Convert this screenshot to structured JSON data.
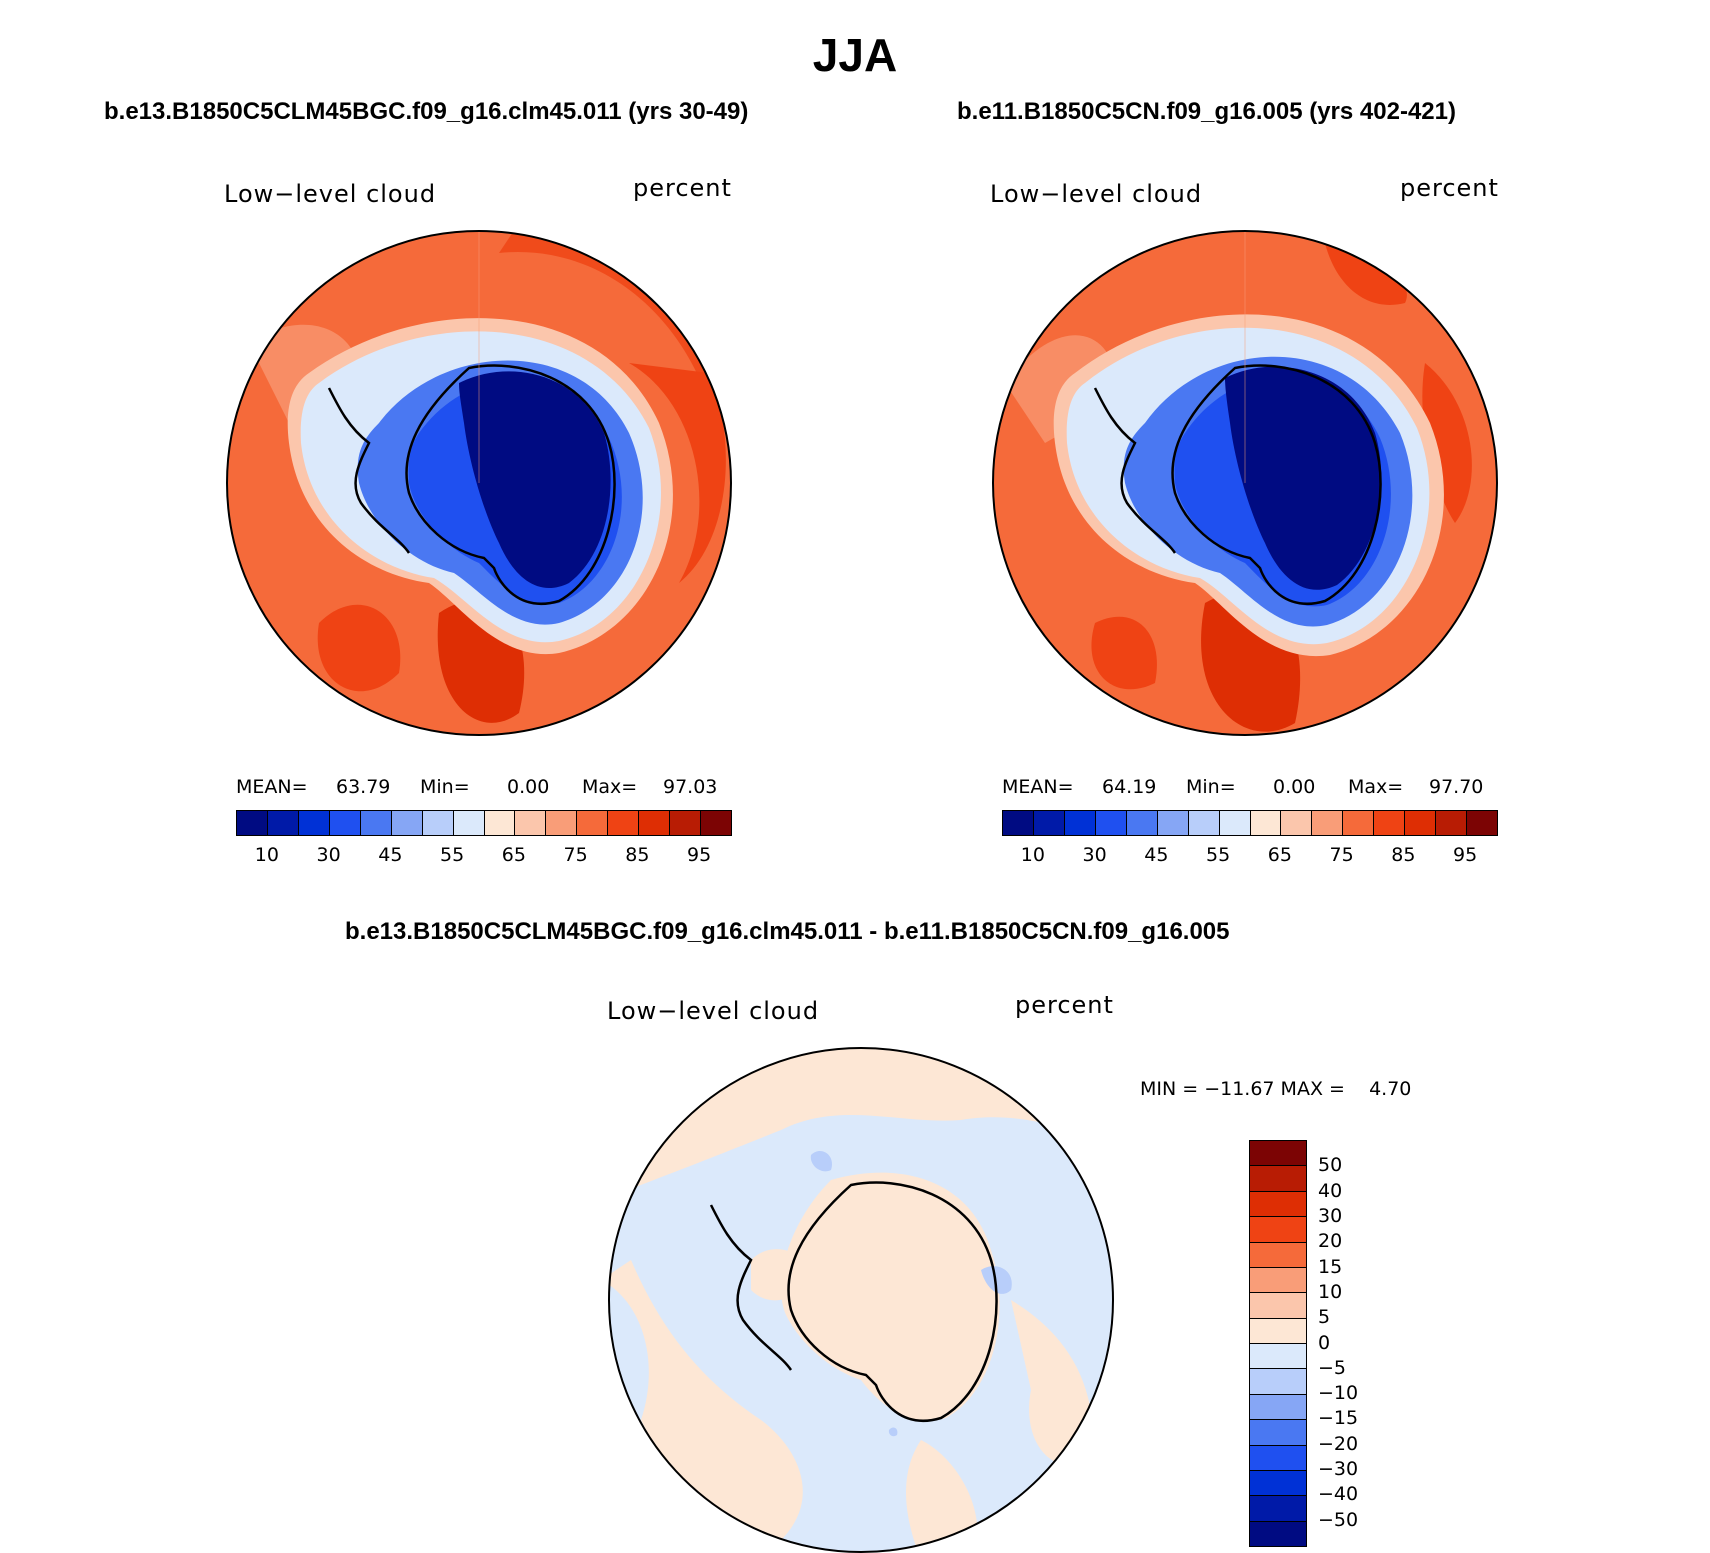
{
  "title": "JJA",
  "panels": [
    {
      "case_title": "b.e13.B1850C5CLM45BGC.f09_g16.clm45.011 (yrs 30-49)",
      "variable": "Low−level cloud",
      "units": "percent",
      "stats": {
        "mean_label": "MEAN=",
        "mean": "63.79",
        "min_label": "Min=",
        "min": "0.00",
        "max_label": "Max=",
        "max": "97.03"
      }
    },
    {
      "case_title": "b.e11.B1850C5CN.f09_g16.005 (yrs 402-421)",
      "variable": "Low−level cloud",
      "units": "percent",
      "stats": {
        "mean_label": "MEAN=",
        "mean": "64.19",
        "min_label": "Min=",
        "min": "0.00",
        "max_label": "Max=",
        "max": "97.70"
      }
    }
  ],
  "colorbar": {
    "colors": [
      "#000b82",
      "#001aa8",
      "#0031d6",
      "#1f50f0",
      "#4a78f2",
      "#86a6f5",
      "#b8cefa",
      "#dbe9fb",
      "#fde7d5",
      "#fbc6ac",
      "#f99d78",
      "#f56a3a",
      "#ef4314",
      "#de2e04",
      "#b81c04",
      "#7c0404"
    ],
    "tick_labels": [
      "10",
      "30",
      "45",
      "55",
      "65",
      "75",
      "85",
      "95"
    ]
  },
  "diff_panel": {
    "case_title": "b.e13.B1850C5CLM45BGC.f09_g16.clm45.011 - b.e11.B1850C5CN.f09_g16.005",
    "variable": "Low−level cloud",
    "units": "percent",
    "minmax": "MIN = −11.67 MAX =    4.70",
    "colorbar": {
      "colors": [
        "#7c0404",
        "#b81c04",
        "#de2e04",
        "#ef4314",
        "#f56a3a",
        "#f99d78",
        "#fbc6ac",
        "#fde7d5",
        "#dbe9fb",
        "#b8cefa",
        "#86a6f5",
        "#4a78f2",
        "#1f50f0",
        "#0031d6",
        "#001aa8",
        "#000b82"
      ],
      "tick_labels": [
        "50",
        "40",
        "30",
        "20",
        "15",
        "10",
        "5",
        "0",
        "−5",
        "−10",
        "−15",
        "−20",
        "−30",
        "−40",
        "−50"
      ]
    }
  }
}
